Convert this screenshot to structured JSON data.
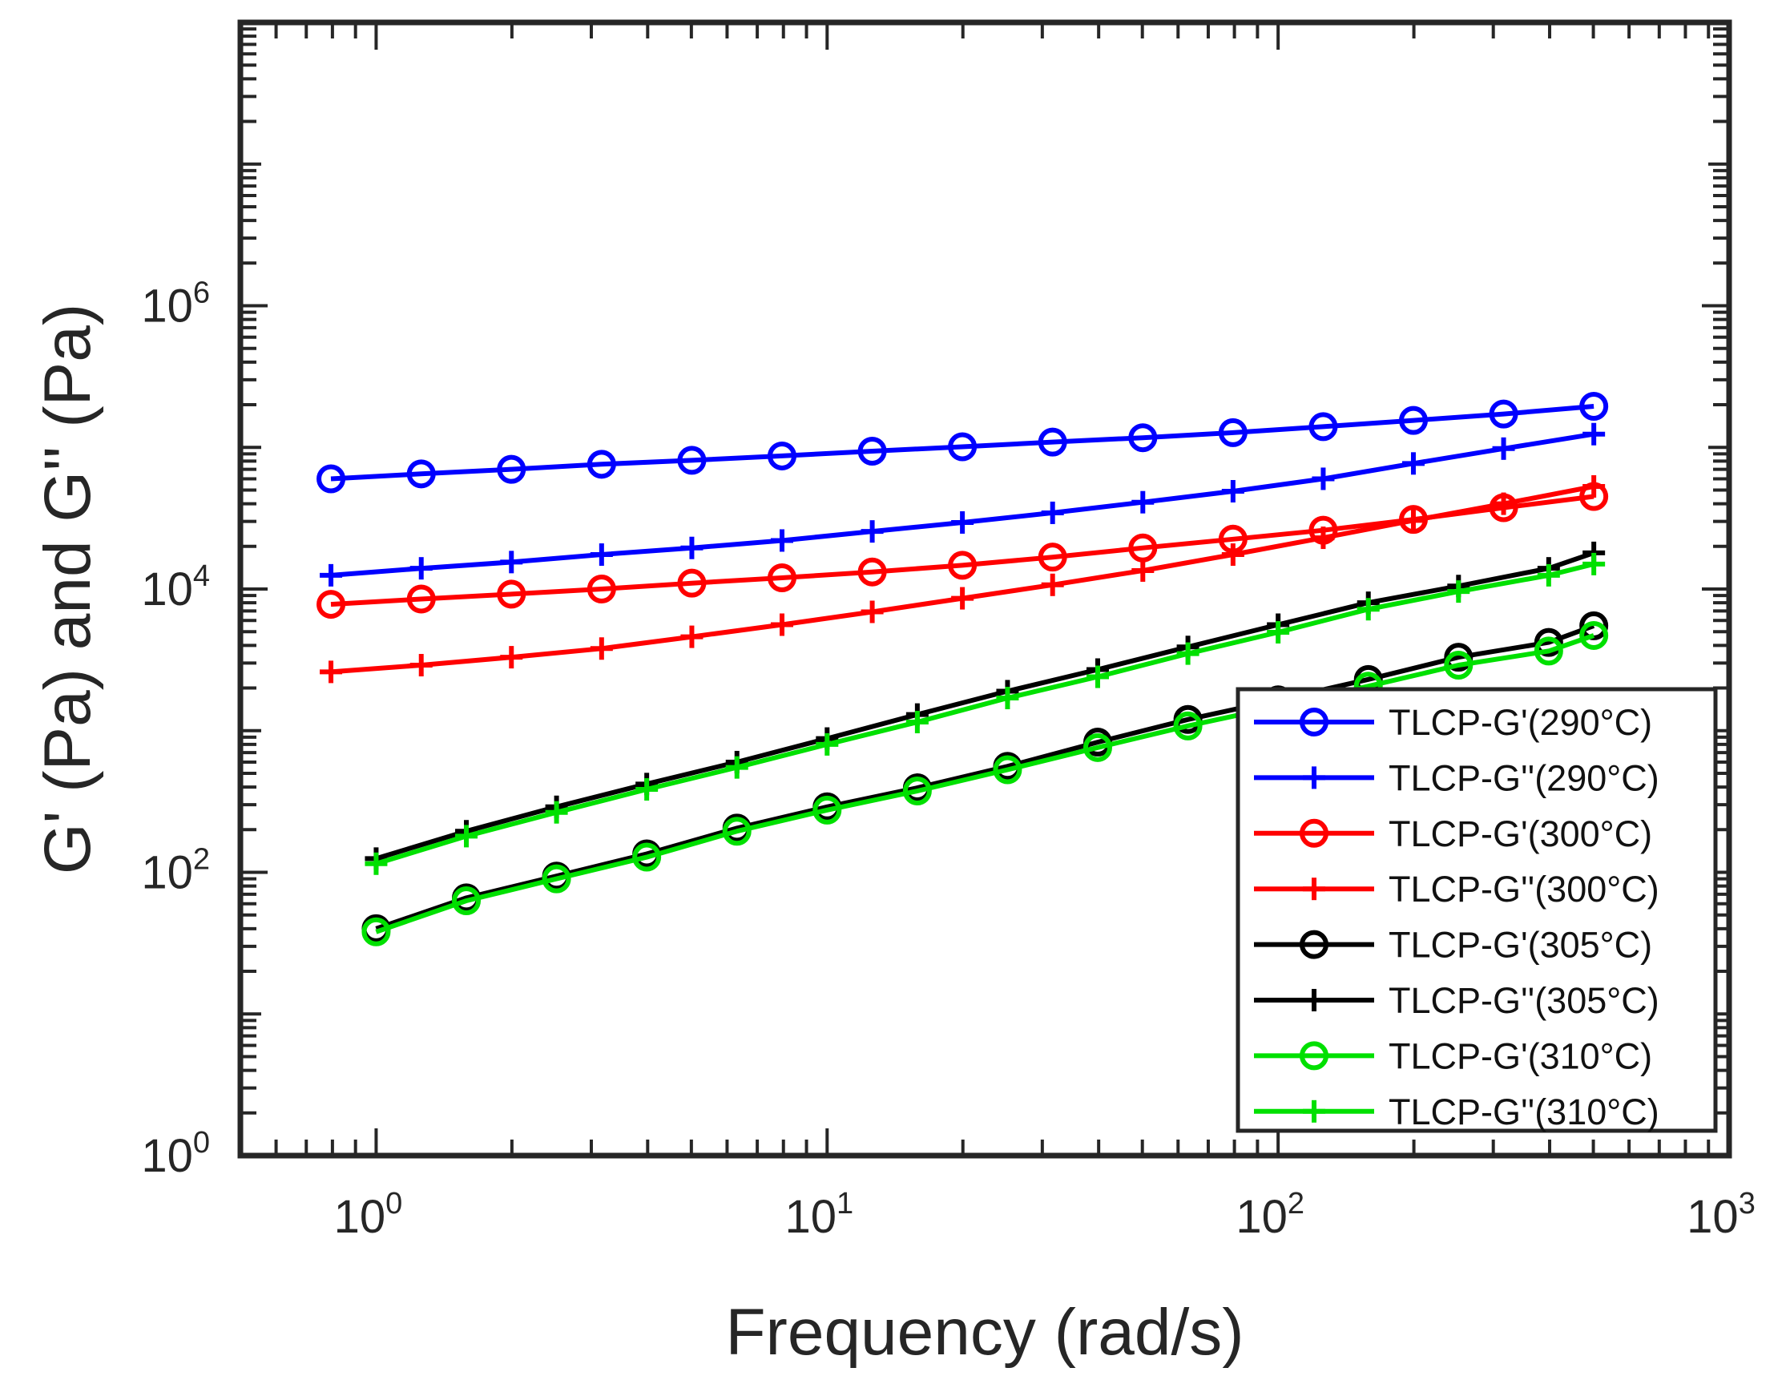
{
  "chart_data": {
    "type": "line",
    "xscale": "log",
    "yscale": "log",
    "xlabel": "Frequency (rad/s)",
    "ylabel": "G' (Pa) and G'' (Pa)",
    "xlim": [
      0.5,
      1000
    ],
    "ylim": [
      1,
      100000000
    ],
    "xticks": [
      {
        "base": "10",
        "exp": "0",
        "value": 1
      },
      {
        "base": "10",
        "exp": "1",
        "value": 10
      },
      {
        "base": "10",
        "exp": "2",
        "value": 100
      },
      {
        "base": "10",
        "exp": "3",
        "value": 1000
      }
    ],
    "yticks": [
      {
        "base": "10",
        "exp": "0",
        "value": 1
      },
      {
        "base": "10",
        "exp": "2",
        "value": 100
      },
      {
        "base": "10",
        "exp": "4",
        "value": 10000
      },
      {
        "base": "10",
        "exp": "6",
        "value": 1000000
      }
    ],
    "legend_position": "bottom-right",
    "series": [
      {
        "name": "TLCP-G'(290°C)",
        "color": "#0000ff",
        "marker": "circle",
        "x": [
          0.794,
          1.259,
          1.995,
          3.162,
          5.012,
          7.943,
          12.59,
          19.95,
          31.62,
          50.12,
          79.43,
          125.9,
          199.5,
          316.2,
          501.2
        ],
        "y": [
          60000,
          65000,
          70000,
          76000,
          81000,
          87000,
          94000,
          101000,
          109000,
          117000,
          127000,
          140000,
          155000,
          172000,
          195000
        ]
      },
      {
        "name": "TLCP-G''(290°C)",
        "color": "#0000ff",
        "marker": "plus",
        "x": [
          0.794,
          1.259,
          1.995,
          3.162,
          5.012,
          7.943,
          12.59,
          19.95,
          31.62,
          50.12,
          79.43,
          125.9,
          199.5,
          316.2,
          501.2
        ],
        "y": [
          12500,
          14000,
          15500,
          17500,
          19500,
          22000,
          25500,
          29500,
          34500,
          41000,
          49000,
          60000,
          77000,
          98000,
          124000
        ]
      },
      {
        "name": "TLCP-G'(300°C)",
        "color": "#ff0000",
        "marker": "circle",
        "x": [
          0.794,
          1.259,
          1.995,
          3.162,
          5.012,
          7.943,
          12.59,
          19.95,
          31.62,
          50.12,
          79.43,
          125.9,
          199.5,
          316.2,
          501.2
        ],
        "y": [
          7800,
          8500,
          9200,
          10000,
          11000,
          12000,
          13200,
          14700,
          16800,
          19500,
          22500,
          26000,
          31000,
          37500,
          45000
        ]
      },
      {
        "name": "TLCP-G''(300°C)",
        "color": "#ff0000",
        "marker": "plus",
        "x": [
          0.794,
          1.259,
          1.995,
          3.162,
          5.012,
          7.943,
          12.59,
          19.95,
          31.62,
          50.12,
          79.43,
          125.9,
          199.5,
          316.2,
          501.2
        ],
        "y": [
          2600,
          2900,
          3300,
          3800,
          4600,
          5600,
          6900,
          8600,
          10700,
          13500,
          17500,
          23000,
          30500,
          40000,
          53000
        ]
      },
      {
        "name": "TLCP-G'(305°C)",
        "color": "#000000",
        "marker": "circle",
        "x": [
          1.0,
          1.585,
          2.512,
          3.981,
          6.31,
          10.0,
          15.85,
          25.12,
          39.81,
          63.1,
          100.0,
          158.5,
          251.2,
          398.1,
          501.2
        ],
        "y": [
          40,
          66,
          94,
          135,
          205,
          290,
          395,
          560,
          830,
          1200,
          1650,
          2300,
          3300,
          4200,
          5500
        ]
      },
      {
        "name": "TLCP-G''(305°C)",
        "color": "#000000",
        "marker": "plus",
        "x": [
          1.0,
          1.585,
          2.512,
          3.981,
          6.31,
          10.0,
          15.85,
          25.12,
          39.81,
          63.1,
          100.0,
          158.5,
          251.2,
          398.1,
          501.2
        ],
        "y": [
          125,
          195,
          290,
          420,
          600,
          880,
          1300,
          1900,
          2700,
          3900,
          5600,
          8000,
          10500,
          14000,
          18000
        ]
      },
      {
        "name": "TLCP-G'(310°C)",
        "color": "#00e000",
        "marker": "circle",
        "x": [
          1.0,
          1.585,
          2.512,
          3.981,
          6.31,
          10.0,
          15.85,
          25.12,
          39.81,
          63.1,
          100.0,
          158.5,
          251.2,
          398.1,
          501.2
        ],
        "y": [
          38,
          63,
          90,
          128,
          195,
          275,
          375,
          530,
          760,
          1080,
          1480,
          2060,
          2900,
          3650,
          4700
        ]
      },
      {
        "name": "TLCP-G''(310°C)",
        "color": "#00e000",
        "marker": "plus",
        "x": [
          1.0,
          1.585,
          2.512,
          3.981,
          6.31,
          10.0,
          15.85,
          25.12,
          39.81,
          63.1,
          100.0,
          158.5,
          251.2,
          398.1,
          501.2
        ],
        "y": [
          115,
          180,
          265,
          385,
          550,
          800,
          1150,
          1700,
          2400,
          3500,
          4950,
          7200,
          9600,
          12500,
          15000
        ]
      }
    ]
  }
}
